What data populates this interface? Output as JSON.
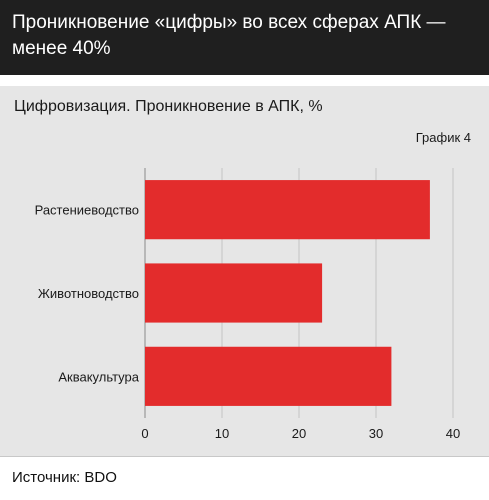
{
  "header": {
    "title": "Проникновение «цифры» во всех сферах АПК — менее 40%"
  },
  "panel": {
    "subtitle": "Цифровизация. Проникновение в АПК, %",
    "chart_number": "График 4"
  },
  "footer": {
    "source": "Источник: BDO"
  },
  "colors": {
    "bar": "#e32c2c",
    "panel_bg": "#e6e6e6",
    "header_bg": "#1f1f1f"
  },
  "chart_data": {
    "type": "bar",
    "orientation": "horizontal",
    "categories": [
      "Растениеводство",
      "Животноводство",
      "Аквакультура"
    ],
    "values": [
      37,
      23,
      32
    ],
    "xlim": [
      0,
      40
    ],
    "xticks": [
      0,
      10,
      20,
      30,
      40
    ],
    "grid": true,
    "xlabel": "",
    "ylabel": ""
  }
}
